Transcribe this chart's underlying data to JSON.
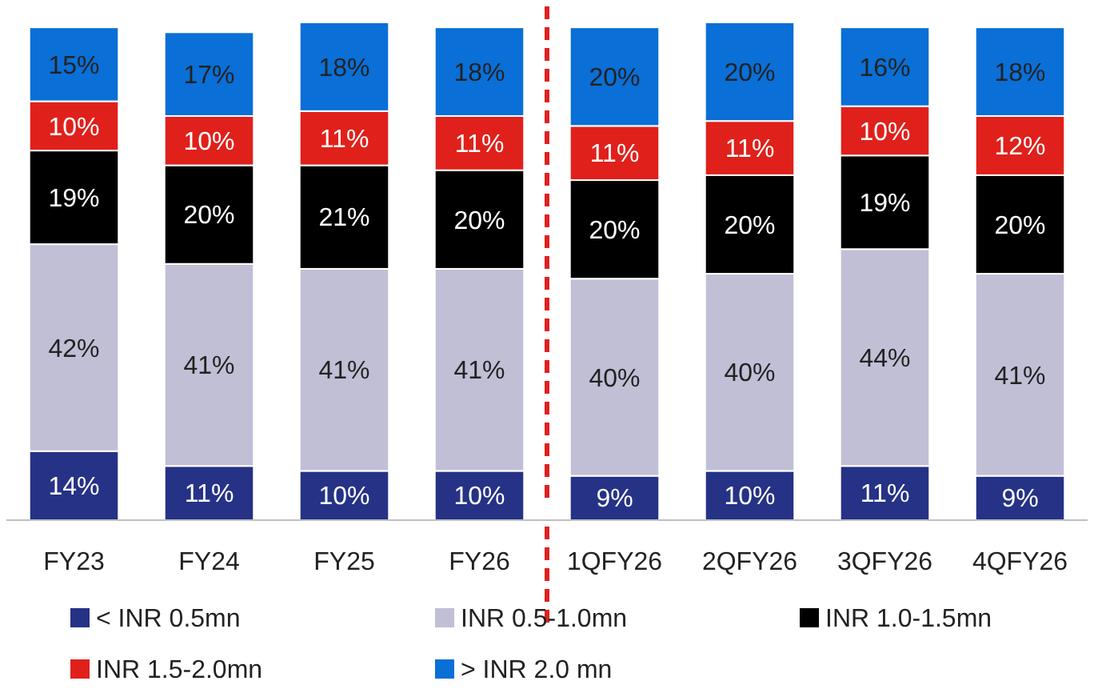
{
  "chart_data": {
    "type": "bar",
    "stacked": true,
    "categories": [
      "FY23",
      "FY24",
      "FY25",
      "FY26",
      "1QFY26",
      "2QFY26",
      "3QFY26",
      "4QFY26"
    ],
    "series": [
      {
        "name": "< INR 0.5mn",
        "color": "#253286",
        "values": [
          14,
          11,
          10,
          10,
          9,
          10,
          11,
          9
        ],
        "value_labels": [
          "14%",
          "11%",
          "10%",
          "10%",
          "9%",
          "10%",
          "11%",
          "9%"
        ]
      },
      {
        "name": "INR 0.5-1.0mn",
        "color": "#c0bfd6",
        "values": [
          42,
          41,
          41,
          41,
          40,
          40,
          44,
          41
        ],
        "value_labels": [
          "42%",
          "41%",
          "41%",
          "41%",
          "40%",
          "40%",
          "44%",
          "41%"
        ]
      },
      {
        "name": "INR 1.0-1.5mn",
        "color": "#000000",
        "values": [
          19,
          20,
          21,
          20,
          20,
          20,
          19,
          20
        ],
        "value_labels": [
          "19%",
          "20%",
          "21%",
          "20%",
          "20%",
          "20%",
          "19%",
          "20%"
        ]
      },
      {
        "name": "INR 1.5-2.0mn",
        "color": "#e0201b",
        "values": [
          10,
          10,
          11,
          11,
          11,
          11,
          10,
          12
        ],
        "value_labels": [
          "10%",
          "10%",
          "11%",
          "11%",
          "11%",
          "11%",
          "10%",
          "12%"
        ]
      },
      {
        "name": "> INR 2.0 mn",
        "color": "#0a6fd6",
        "values": [
          15,
          17,
          18,
          18,
          20,
          20,
          16,
          18
        ],
        "value_labels": [
          "15%",
          "17%",
          "18%",
          "18%",
          "20%",
          "20%",
          "16%",
          "18%"
        ]
      }
    ],
    "legend": "bottom"
  }
}
